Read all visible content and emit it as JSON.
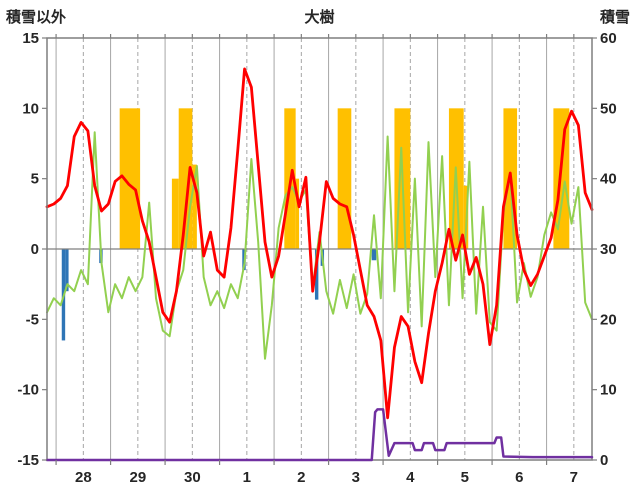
{
  "header": {
    "left_axis_title": "積雪以外",
    "title": "大樹",
    "right_axis_title": "積雪"
  },
  "chart_data": {
    "type": "line",
    "title": "大樹",
    "left_axis": {
      "label": "積雪以外",
      "min": -15,
      "max": 15,
      "ticks": [
        15,
        10,
        5,
        0,
        -5,
        -10,
        -15
      ]
    },
    "right_axis": {
      "label": "積雪",
      "min": 0,
      "max": 60,
      "ticks": [
        60,
        50,
        40,
        30,
        20,
        10,
        0
      ]
    },
    "x_axis": {
      "unit": "hours from day-28 00:00",
      "t_min": -4,
      "t_max": 236,
      "day_boundaries": [
        0,
        24,
        48,
        72,
        96,
        120,
        144,
        168,
        192,
        216
      ],
      "noon_ticks": [
        12,
        36,
        60,
        84,
        108,
        132,
        156,
        180,
        204,
        228
      ],
      "labels": [
        "28",
        "29",
        "30",
        "1",
        "2",
        "3",
        "4",
        "5",
        "6",
        "7"
      ]
    },
    "colors": {
      "grid": "#a6a6a6",
      "border": "#7f7f7f",
      "zero_line": "#7f7f7f",
      "tick_text": "#262626",
      "red": "#ff0000",
      "green": "#92d050",
      "orange": "#ffc000",
      "blue": "#2e75b6",
      "purple": "#7030a0"
    },
    "bars": [
      {
        "name": "orange-sunshine-bars",
        "color": "#ffc000",
        "segments": [
          [
            28,
            37,
            10
          ],
          [
            51,
            54,
            5
          ],
          [
            54,
            60,
            10
          ],
          [
            60,
            62,
            6
          ],
          [
            100.5,
            105.5,
            10
          ],
          [
            105.5,
            107,
            5
          ],
          [
            124,
            130,
            10
          ],
          [
            149,
            156,
            10
          ],
          [
            173,
            179.5,
            10
          ],
          [
            179.5,
            181.5,
            4.5
          ],
          [
            197,
            203,
            10
          ],
          [
            219,
            226,
            10
          ]
        ]
      },
      {
        "name": "blue-precip-bars",
        "color": "#2e75b6",
        "segments": [
          [
            2.5,
            4,
            -6.5
          ],
          [
            4,
            5.5,
            -3
          ],
          [
            19,
            20.5,
            -1
          ],
          [
            82,
            83.5,
            -1.5
          ],
          [
            114,
            115.5,
            -3.6
          ],
          [
            116.5,
            118,
            -1.2
          ],
          [
            139,
            141,
            -0.8
          ]
        ]
      }
    ],
    "series": [
      {
        "name": "green-line",
        "axis": "left",
        "color": "#92d050",
        "width": 2,
        "top": false,
        "t0": -4,
        "dt": 3,
        "values": [
          -4.5,
          -3.5,
          -4.0,
          -2.5,
          -3.0,
          -1.5,
          -2.5,
          8.3,
          -1.0,
          -4.5,
          -2.5,
          -3.5,
          -2.0,
          -3.0,
          -2.0,
          3.3,
          -3.5,
          -5.8,
          -6.2,
          -3.0,
          -1.5,
          3.0,
          5.9,
          -2.0,
          -4.0,
          -3.0,
          -4.2,
          -2.5,
          -3.5,
          -1.0,
          6.4,
          0.5,
          -7.8,
          -4.0,
          1.5,
          3.8,
          4.4,
          3.4,
          4.2,
          -2.8,
          1.2,
          -3.0,
          -4.6,
          -2.2,
          -4.2,
          -1.8,
          -4.6,
          -3.2,
          2.4,
          -3.5,
          8.0,
          -3.0,
          7.2,
          -4.5,
          5.0,
          -5.5,
          7.6,
          -2.0,
          6.6,
          -4.0,
          5.8,
          -3.5,
          6.2,
          -4.6,
          3.0,
          -5.2,
          -5.8,
          2.6,
          5.4,
          -3.8,
          -1.0,
          -3.4,
          -2.0,
          1.0,
          2.6,
          1.4,
          4.8,
          1.8,
          4.4,
          -3.8,
          -5.0
        ]
      },
      {
        "name": "red-line",
        "axis": "left",
        "color": "#ff0000",
        "width": 2.8,
        "top": false,
        "t0": -4,
        "dt": 3,
        "values": [
          3.0,
          3.2,
          3.6,
          4.5,
          8.0,
          9.0,
          8.4,
          4.5,
          2.7,
          3.2,
          4.8,
          5.2,
          4.6,
          4.2,
          2.0,
          0.5,
          -2.0,
          -4.5,
          -5.2,
          -3.0,
          1.0,
          5.8,
          4.0,
          -0.5,
          1.2,
          -1.5,
          -2.0,
          1.5,
          7.0,
          12.8,
          11.5,
          6.0,
          0.5,
          -2.0,
          -0.5,
          2.5,
          5.6,
          3.0,
          5.1,
          -3.0,
          0.5,
          4.8,
          3.6,
          3.2,
          3.0,
          1.0,
          -1.5,
          -4.0,
          -4.8,
          -6.5,
          -12.0,
          -7.0,
          -4.8,
          -5.5,
          -8.0,
          -9.5,
          -6.0,
          -3.0,
          -1.0,
          1.4,
          -0.8,
          1.0,
          -1.8,
          -0.6,
          -2.5,
          -6.8,
          -4.0,
          3.0,
          5.4,
          1.0,
          -1.5,
          -2.6,
          -1.8,
          -0.5,
          0.8,
          3.5,
          8.5,
          9.8,
          8.8,
          4.0,
          2.8
        ]
      },
      {
        "name": "purple-snow-line",
        "axis": "right",
        "color": "#7030a0",
        "width": 2.5,
        "top": true,
        "points": [
          [
            -4,
            0
          ],
          [
            139,
            0
          ],
          [
            140.5,
            6.8
          ],
          [
            141.5,
            7.2
          ],
          [
            144,
            7.2
          ],
          [
            146.5,
            0.6
          ],
          [
            149,
            2.4
          ],
          [
            157,
            2.4
          ],
          [
            158,
            1.4
          ],
          [
            161,
            1.4
          ],
          [
            162,
            2.4
          ],
          [
            166,
            2.4
          ],
          [
            167,
            1.4
          ],
          [
            171,
            1.4
          ],
          [
            172,
            2.4
          ],
          [
            186,
            2.4
          ],
          [
            193,
            2.4
          ],
          [
            194,
            3.2
          ],
          [
            196,
            3.2
          ],
          [
            197,
            0.5
          ],
          [
            210,
            0.4
          ],
          [
            236,
            0.4
          ]
        ]
      }
    ]
  }
}
